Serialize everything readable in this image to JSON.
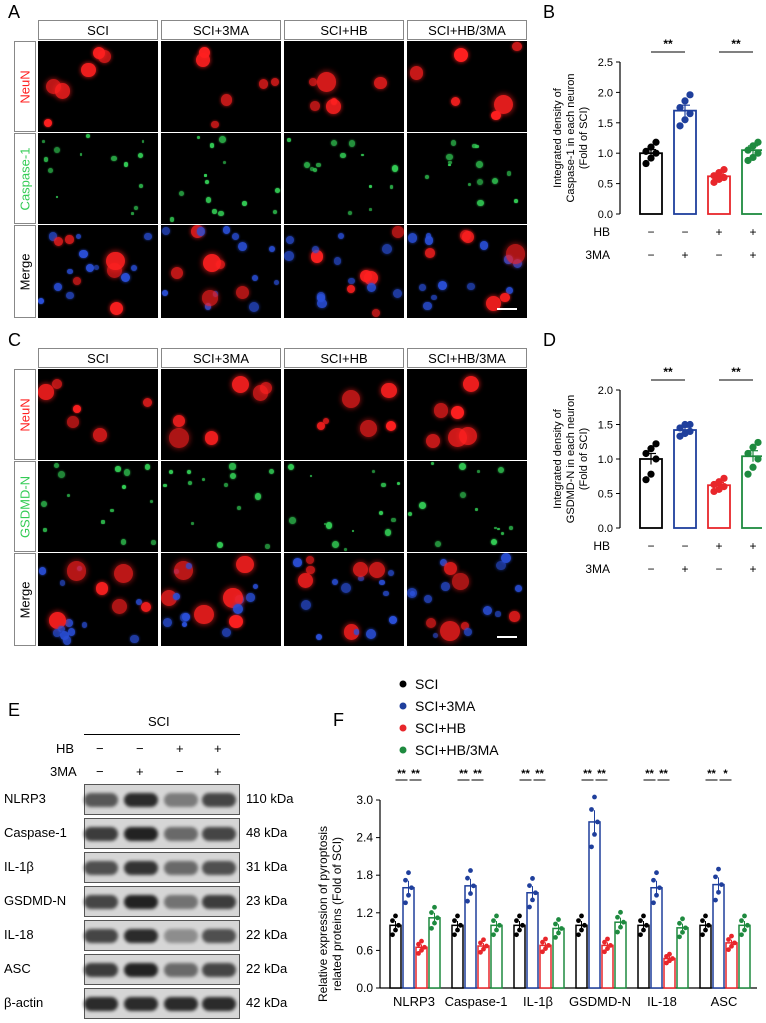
{
  "panels": {
    "A": "A",
    "B": "B",
    "C": "C",
    "D": "D",
    "E": "E",
    "F": "F"
  },
  "micro_columns": [
    "SCI",
    "SCI+3MA",
    "SCI+HB",
    "SCI+HB/3MA"
  ],
  "micro_top_rows": [
    "NeuN",
    "Caspase-1",
    "Merge"
  ],
  "micro_bottom_rows": [
    "NeuN",
    "GSDMD-N",
    "Merge"
  ],
  "colors": {
    "SCI": "#000000",
    "SCI+3MA": "#1f3f9c",
    "SCI+HB": "#e8262b",
    "SCI+HB/3MA": "#1e8a3f",
    "neun": "#ff2020",
    "green": "#33cc55",
    "dapi": "#2a4fd8"
  },
  "treatment_table": {
    "HB": [
      "−",
      "−",
      "+",
      "+"
    ],
    "3MA": [
      "−",
      "+",
      "−",
      "+"
    ]
  },
  "chart_data": [
    {
      "panel": "B",
      "type": "bar",
      "categories": [
        "SCI",
        "SCI+3MA",
        "SCI+HB",
        "SCI+HB/3MA"
      ],
      "values": [
        1.0,
        1.7,
        0.62,
        1.05
      ],
      "errors": [
        0.06,
        0.09,
        0.04,
        0.07
      ],
      "points": [
        [
          0.83,
          0.92,
          1.0,
          1.03,
          1.1,
          1.18
        ],
        [
          1.45,
          1.55,
          1.65,
          1.75,
          1.86,
          1.96
        ],
        [
          0.52,
          0.57,
          0.6,
          0.63,
          0.68,
          0.73
        ],
        [
          0.88,
          0.93,
          1.0,
          1.05,
          1.12,
          1.18
        ]
      ],
      "ylabel": "Integrated density of Caspase-1 in each neuron (Fold of SCI)",
      "ylim": [
        0,
        2.5
      ],
      "yticks": [
        "0.0",
        "0.5",
        "1.0",
        "1.5",
        "2.0",
        "2.5"
      ],
      "significance": [
        "**",
        "**"
      ]
    },
    {
      "panel": "D",
      "type": "bar",
      "categories": [
        "SCI",
        "SCI+3MA",
        "SCI+HB",
        "SCI+HB/3MA"
      ],
      "values": [
        1.0,
        1.42,
        0.62,
        1.04
      ],
      "errors": [
        0.08,
        0.04,
        0.04,
        0.08
      ],
      "points": [
        [
          0.7,
          0.78,
          1.0,
          1.08,
          1.15,
          1.22
        ],
        [
          1.33,
          1.37,
          1.4,
          1.45,
          1.5,
          1.5
        ],
        [
          0.53,
          0.56,
          0.6,
          0.63,
          0.67,
          0.72
        ],
        [
          0.78,
          0.88,
          1.0,
          1.08,
          1.17,
          1.24
        ]
      ],
      "ylabel": "Integrated density of GSDMD-N in each neuron (Fold of SCI)",
      "ylim": [
        0,
        2.0
      ],
      "yticks": [
        "0.0",
        "0.5",
        "1.0",
        "1.5",
        "2.0"
      ],
      "significance": [
        "**",
        "**"
      ]
    },
    {
      "panel": "F",
      "type": "bar",
      "categories": [
        "NLRP3",
        "Caspase-1",
        "IL-1β",
        "GSDMD-N",
        "IL-18",
        "ASC"
      ],
      "ylabel": "Relative expression of pyroptosis related proteins (Fold of SCI)",
      "ylim": [
        0,
        3.0
      ],
      "yticks": [
        "0.0",
        "0.6",
        "1.2",
        "1.8",
        "2.4",
        "3.0"
      ],
      "legend": "top-left",
      "series": [
        {
          "name": "SCI",
          "values": [
            1.0,
            1.0,
            1.0,
            1.0,
            1.0,
            1.0
          ]
        },
        {
          "name": "SCI+3MA",
          "values": [
            1.6,
            1.63,
            1.52,
            2.65,
            1.6,
            1.65
          ]
        },
        {
          "name": "SCI+HB",
          "values": [
            0.65,
            0.67,
            0.68,
            0.68,
            0.47,
            0.72
          ]
        },
        {
          "name": "SCI+HB/3MA",
          "values": [
            1.12,
            1.0,
            0.95,
            1.05,
            0.96,
            1.0
          ]
        }
      ],
      "significance": [
        [
          "**",
          "**"
        ],
        [
          "**",
          "**"
        ],
        [
          "**",
          "**"
        ],
        [
          "**",
          "**"
        ],
        [
          "**",
          "**"
        ],
        [
          "**",
          "*"
        ]
      ]
    }
  ],
  "western": {
    "group": "SCI",
    "rows": [
      "NLRP3",
      "Caspase-1",
      "IL-1β",
      "GSDMD-N",
      "IL-18",
      "ASC",
      "β-actin"
    ],
    "sizes": [
      "110 kDa",
      "48 kDa",
      "31 kDa",
      "23 kDa",
      "22 kDa",
      "22 kDa",
      "42 kDa"
    ],
    "hb": [
      "−",
      "−",
      "+",
      "+"
    ],
    "ma": [
      "−",
      "+",
      "−",
      "+"
    ],
    "hb_label": "HB",
    "ma_label": "3MA",
    "intensity": [
      [
        0.7,
        0.95,
        0.5,
        0.8
      ],
      [
        0.85,
        1.0,
        0.6,
        0.8
      ],
      [
        0.75,
        0.9,
        0.6,
        0.75
      ],
      [
        0.8,
        1.0,
        0.55,
        0.85
      ],
      [
        0.8,
        0.95,
        0.4,
        0.75
      ],
      [
        0.85,
        1.0,
        0.6,
        0.8
      ],
      [
        0.95,
        0.95,
        0.95,
        0.95
      ]
    ]
  }
}
